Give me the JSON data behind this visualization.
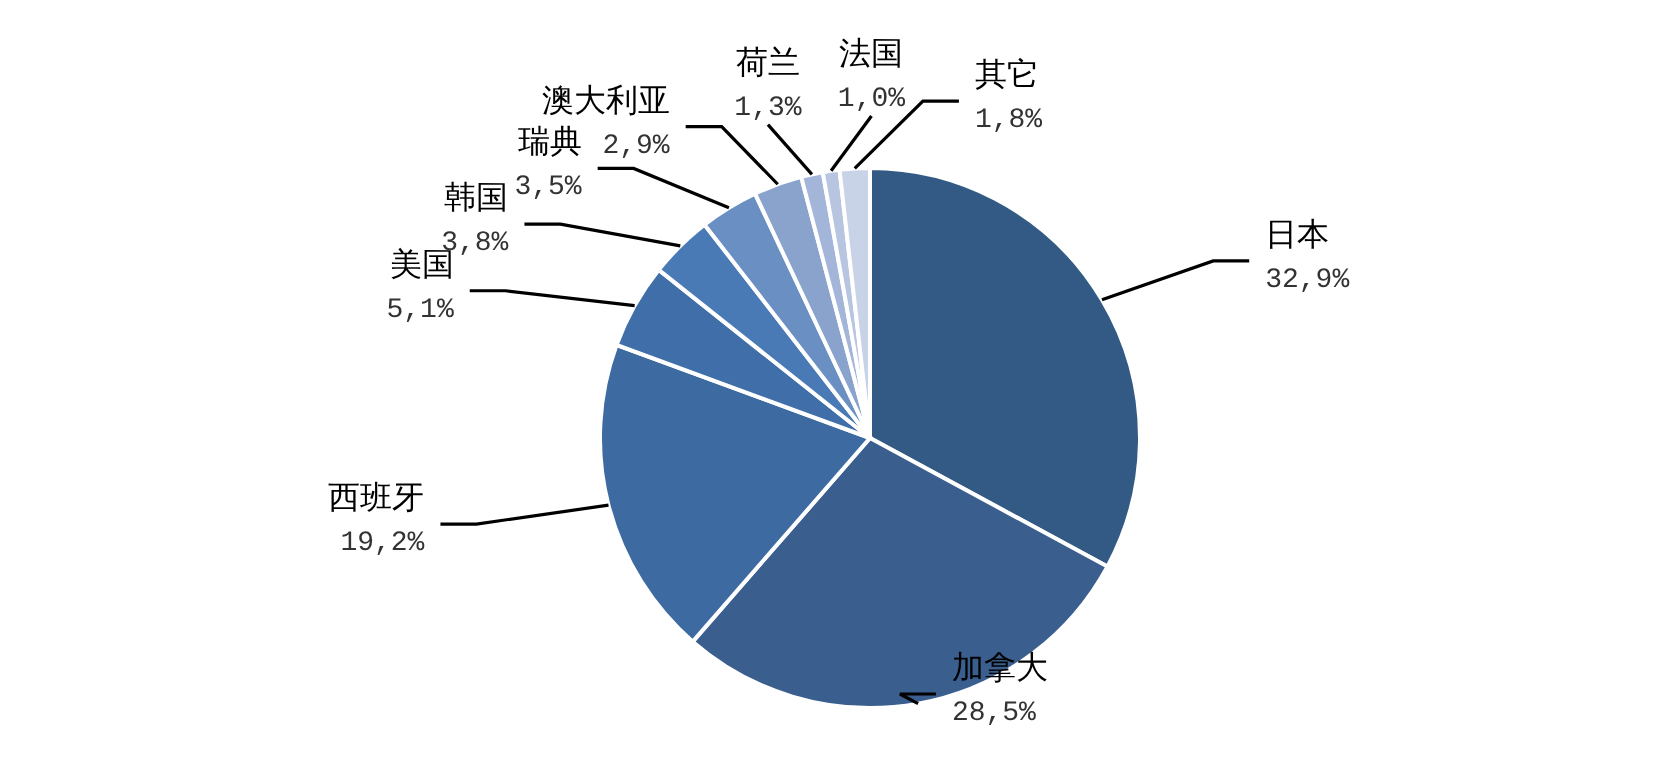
{
  "chart_data": {
    "type": "pie",
    "categories": [
      "日本",
      "加拿大",
      "西班牙",
      "美国",
      "韩国",
      "瑞典",
      "澳大利亚",
      "荷兰",
      "法国",
      "其它"
    ],
    "values": [
      32.9,
      28.5,
      19.2,
      5.1,
      3.8,
      3.5,
      2.9,
      1.3,
      1.0,
      1.8
    ],
    "value_labels": [
      "32,9%",
      "28,5%",
      "19,2%",
      "5,1%",
      "3,8%",
      "3,5%",
      "2,9%",
      "1,3%",
      "1,0%",
      "1,8%"
    ],
    "colors": [
      "#335a85",
      "#3a5f8f",
      "#3d6aa0",
      "#3f6ea8",
      "#4a7ab5",
      "#6a8fc2",
      "#89a3cc",
      "#a3b5d8",
      "#b7c5e0",
      "#c8d3e8"
    ]
  }
}
